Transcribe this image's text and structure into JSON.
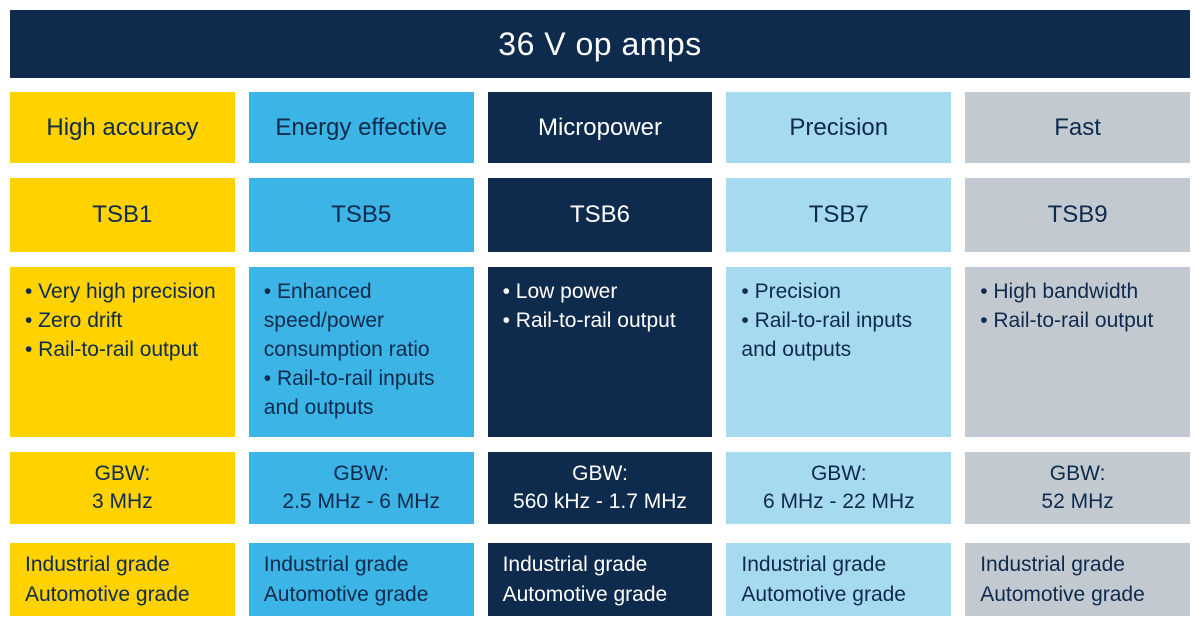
{
  "title": "36 V op amps",
  "gbw_label": "GBW:",
  "colors": {
    "navy": "#0E2A4C",
    "yellow": "#FFD200",
    "blue": "#3CB4E6",
    "lightblue": "#A6DAF1",
    "gray": "#C3C9D1",
    "white": "#FFFFFF"
  },
  "columns": [
    {
      "id": "tsb1",
      "color_name": "yellow",
      "category": "High accuracy",
      "family": "TSB1",
      "features": [
        "Very high precision",
        "Zero drift",
        "Rail-to-rail output"
      ],
      "gbw": "3 MHz",
      "grades": [
        "Industrial grade",
        "Automotive grade"
      ]
    },
    {
      "id": "tsb5",
      "color_name": "blue",
      "category": "Energy effective",
      "family": "TSB5",
      "features": [
        "Enhanced speed/power consumption ratio",
        "Rail-to-rail inputs and outputs"
      ],
      "gbw": "2.5 MHz - 6 MHz",
      "grades": [
        "Industrial grade",
        "Automotive grade"
      ]
    },
    {
      "id": "tsb6",
      "color_name": "navy",
      "category": "Micropower",
      "family": "TSB6",
      "features": [
        "Low power",
        "Rail-to-rail output"
      ],
      "gbw": "560 kHz - 1.7 MHz",
      "grades": [
        "Industrial grade",
        "Automotive grade"
      ]
    },
    {
      "id": "tsb7",
      "color_name": "lightblue",
      "category": "Precision",
      "family": "TSB7",
      "features": [
        "Precision",
        "Rail-to-rail inputs and outputs"
      ],
      "gbw": "6 MHz - 22 MHz",
      "grades": [
        "Industrial grade",
        "Automotive grade"
      ]
    },
    {
      "id": "tsb9",
      "color_name": "gray",
      "category": "Fast",
      "family": "TSB9",
      "features": [
        "High bandwidth",
        "Rail-to-rail output"
      ],
      "gbw": "52 MHz",
      "grades": [
        "Industrial grade",
        "Automotive grade"
      ]
    }
  ]
}
